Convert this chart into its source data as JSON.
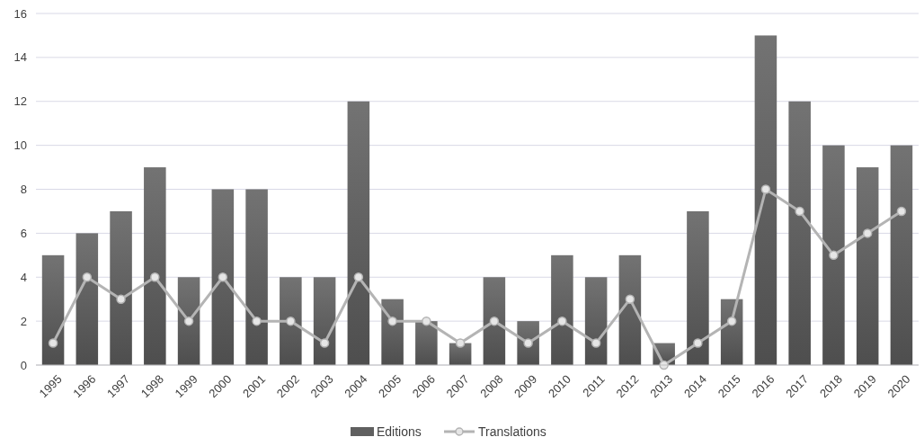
{
  "chart_data": {
    "type": "bar",
    "categories": [
      "1995",
      "1996",
      "1997",
      "1998",
      "1999",
      "2000",
      "2001",
      "2002",
      "2003",
      "2004",
      "2005",
      "2006",
      "2007",
      "2008",
      "2009",
      "2010",
      "2011",
      "2012",
      "2013",
      "2014",
      "2015",
      "2016",
      "2017",
      "2018",
      "2019",
      "2020"
    ],
    "series": [
      {
        "name": "Editions",
        "color": "#606060",
        "values": [
          5,
          6,
          7,
          9,
          4,
          8,
          8,
          4,
          4,
          12,
          3,
          2,
          1,
          4,
          2,
          5,
          4,
          5,
          1,
          7,
          3,
          15,
          12,
          10,
          9,
          10
        ]
      },
      {
        "name": "Translations",
        "type": "line",
        "color": "#b4b4b4",
        "marker": "circle",
        "values": [
          1,
          4,
          3,
          4,
          2,
          4,
          2,
          2,
          1,
          4,
          2,
          2,
          1,
          2,
          1,
          2,
          1,
          3,
          0,
          1,
          2,
          8,
          7,
          5,
          6,
          7
        ]
      }
    ],
    "ylim": [
      0,
      16
    ],
    "yticks": [
      0,
      2,
      4,
      6,
      8,
      10,
      12,
      14,
      16
    ],
    "grid": "y",
    "legend": "bottom"
  }
}
